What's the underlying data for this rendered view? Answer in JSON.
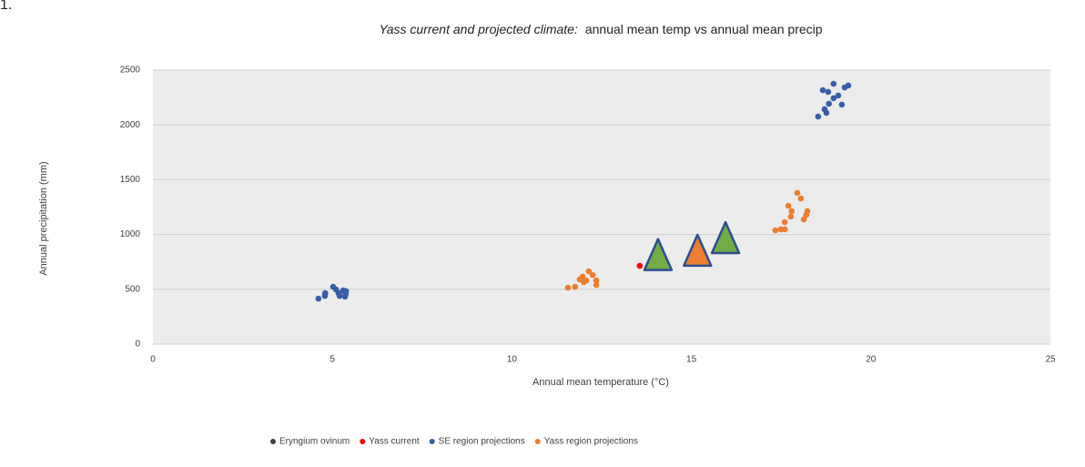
{
  "annotation": "1.",
  "chart_data": {
    "type": "scatter",
    "title": "Yass current and projected climate:",
    "subtitle": "annual mean temp vs annual mean precip",
    "x_label": "Annual mean temperature (°C)",
    "y_label": "Annual precipitation (mm)",
    "xlim": [
      0,
      25
    ],
    "xticks": [
      0,
      5,
      10,
      15,
      20,
      25
    ],
    "ylim": [
      0,
      2500
    ],
    "yticks": [
      0,
      500,
      1000,
      1500,
      2000,
      2500
    ],
    "grid": true,
    "legend": "bottom",
    "series": [
      {
        "name": "Eryngium ovinum",
        "color": "#404040",
        "x": [],
        "values": []
      },
      {
        "name": "Yass current",
        "color": "#ff0000",
        "x": [
          13.56
        ],
        "values": [
          714
        ]
      },
      {
        "name": "SE region projections",
        "color": "#3a5ea6",
        "x": [
          4.61,
          4.79,
          4.8,
          5.02,
          5.1,
          5.17,
          5.2,
          5.32,
          5.35,
          5.38,
          5.37,
          5.3,
          18.53,
          18.66,
          18.81,
          18.71,
          18.83,
          18.96,
          18.96,
          19.09,
          19.19,
          19.27,
          19.37,
          18.76
        ],
        "values": [
          415,
          440,
          465,
          523,
          498,
          465,
          440,
          482,
          433,
          482,
          457,
          490,
          2076,
          2317,
          2301,
          2143,
          2193,
          2375,
          2243,
          2268,
          2185,
          2342,
          2359,
          2110
        ]
      },
      {
        "name": "Yass region projections",
        "color": "#ed7d31",
        "x": [
          11.56,
          11.76,
          11.89,
          11.97,
          12.07,
          12.14,
          12.25,
          12.35,
          12.35,
          12.0,
          17.34,
          17.49,
          17.6,
          17.6,
          17.7,
          17.77,
          17.79,
          17.95,
          18.05,
          18.13,
          18.2,
          18.23
        ],
        "values": [
          515,
          523,
          590,
          615,
          581,
          664,
          631,
          581,
          540,
          565,
          1038,
          1047,
          1047,
          1113,
          1262,
          1163,
          1213,
          1379,
          1329,
          1138,
          1179,
          1213
        ]
      },
      {
        "marker": "triangle",
        "color": "#70ad47",
        "x": [
          14.07,
          15.95
        ],
        "values": [
          800,
          955
        ]
      },
      {
        "marker": "triangle",
        "color": "#ed7d31",
        "x": [
          15.17
        ],
        "values": [
          840
        ]
      }
    ]
  }
}
